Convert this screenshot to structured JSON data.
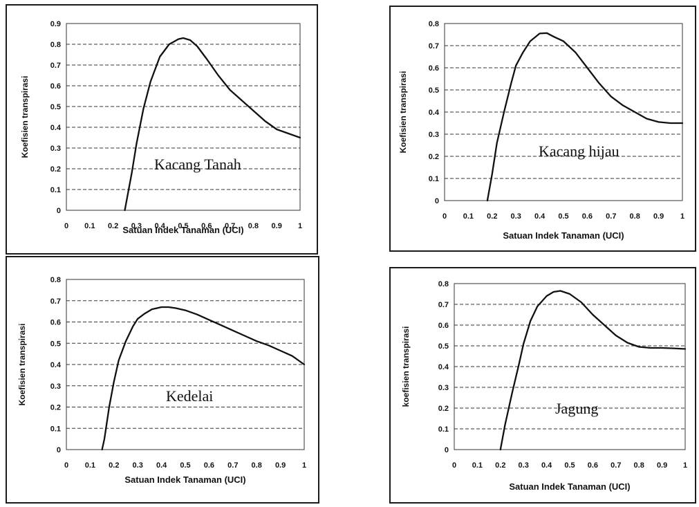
{
  "chart_data": [
    {
      "type": "line",
      "title": "",
      "annotation": "Kacang Tanah",
      "xlabel": "Satuan Indek Tanaman (UCI)",
      "ylabel": "Koefisien transpirasi",
      "xlim": [
        0,
        1
      ],
      "ylim": [
        0,
        0.9
      ],
      "xticks": [
        "0",
        "0.1",
        "0.2",
        "0.3",
        "0.4",
        "0.5",
        "0.6",
        "0.7",
        "0.8",
        "0.9",
        "1"
      ],
      "yticks": [
        "0",
        "0.1",
        "0.2",
        "0.3",
        "0.4",
        "0.5",
        "0.6",
        "0.7",
        "0.8",
        "0.9"
      ],
      "grid": true,
      "series": [
        {
          "x": [
            0.25,
            0.28,
            0.3,
            0.33,
            0.36,
            0.4,
            0.44,
            0.48,
            0.5,
            0.53,
            0.56,
            0.6,
            0.65,
            0.7,
            0.75,
            0.8,
            0.85,
            0.9,
            0.95,
            1.0
          ],
          "y": [
            0.0,
            0.18,
            0.32,
            0.49,
            0.62,
            0.74,
            0.8,
            0.825,
            0.83,
            0.82,
            0.79,
            0.73,
            0.65,
            0.58,
            0.53,
            0.48,
            0.43,
            0.39,
            0.37,
            0.35
          ]
        }
      ]
    },
    {
      "type": "line",
      "title": "",
      "annotation": "Kacang hijau",
      "xlabel": "Satuan Indek Tanaman (UCI)",
      "ylabel": "Koefisien transpirasi",
      "xlim": [
        0,
        1
      ],
      "ylim": [
        0,
        0.8
      ],
      "xticks": [
        "0",
        "0.1",
        "0.2",
        "0.3",
        "0.4",
        "0.5",
        "0.6",
        "0.7",
        "0.8",
        "0.9",
        "1"
      ],
      "yticks": [
        "0",
        "0.1",
        "0.2",
        "0.3",
        "0.4",
        "0.5",
        "0.6",
        "0.7",
        "0.8"
      ],
      "grid": true,
      "series": [
        {
          "x": [
            0.18,
            0.2,
            0.22,
            0.25,
            0.28,
            0.3,
            0.33,
            0.36,
            0.4,
            0.43,
            0.46,
            0.5,
            0.55,
            0.6,
            0.65,
            0.7,
            0.75,
            0.8,
            0.85,
            0.9,
            0.95,
            1.0
          ],
          "y": [
            0.0,
            0.12,
            0.26,
            0.4,
            0.53,
            0.61,
            0.67,
            0.72,
            0.755,
            0.757,
            0.74,
            0.72,
            0.67,
            0.6,
            0.53,
            0.47,
            0.43,
            0.4,
            0.37,
            0.355,
            0.35,
            0.35
          ]
        }
      ]
    },
    {
      "type": "line",
      "title": "",
      "annotation": "Kedelai",
      "xlabel": "Satuan Indek Tanaman (UCI)",
      "ylabel": "Koefisien transpirasi",
      "xlim": [
        0,
        1
      ],
      "ylim": [
        0,
        0.8
      ],
      "xticks": [
        "0",
        "0.1",
        "0.2",
        "0.3",
        "0.4",
        "0.5",
        "0.6",
        "0.7",
        "0.8",
        "0.9",
        "1"
      ],
      "yticks": [
        "0",
        "0.1",
        "0.2",
        "0.3",
        "0.4",
        "0.5",
        "0.6",
        "0.7",
        "0.8"
      ],
      "grid": true,
      "series": [
        {
          "x": [
            0.15,
            0.16,
            0.18,
            0.2,
            0.22,
            0.25,
            0.28,
            0.3,
            0.33,
            0.36,
            0.4,
            0.43,
            0.46,
            0.5,
            0.55,
            0.6,
            0.65,
            0.7,
            0.75,
            0.8,
            0.85,
            0.9,
            0.95,
            1.0
          ],
          "y": [
            0.0,
            0.05,
            0.2,
            0.32,
            0.42,
            0.51,
            0.58,
            0.615,
            0.64,
            0.66,
            0.67,
            0.67,
            0.665,
            0.655,
            0.635,
            0.61,
            0.585,
            0.56,
            0.535,
            0.51,
            0.49,
            0.465,
            0.44,
            0.4
          ]
        }
      ]
    },
    {
      "type": "line",
      "title": "",
      "annotation": "Jagung",
      "xlabel": "Satuan Indek Tanaman (UCI)",
      "ylabel": "koefisien transpirasi",
      "xlim": [
        0,
        1
      ],
      "ylim": [
        0,
        0.8
      ],
      "xticks": [
        "0",
        "0.1",
        "0.2",
        "0.3",
        "0.4",
        "0.5",
        "0.6",
        "0.7",
        "0.8",
        "0.9",
        "1"
      ],
      "yticks": [
        "0",
        "0.1",
        "0.2",
        "0.3",
        "0.4",
        "0.5",
        "0.6",
        "0.7",
        "0.8"
      ],
      "grid": true,
      "series": [
        {
          "x": [
            0.2,
            0.22,
            0.25,
            0.28,
            0.3,
            0.33,
            0.36,
            0.4,
            0.43,
            0.46,
            0.5,
            0.55,
            0.6,
            0.65,
            0.7,
            0.75,
            0.8,
            0.85,
            0.9,
            0.95,
            1.0
          ],
          "y": [
            0.0,
            0.12,
            0.27,
            0.41,
            0.51,
            0.62,
            0.69,
            0.74,
            0.76,
            0.765,
            0.75,
            0.71,
            0.65,
            0.6,
            0.55,
            0.515,
            0.495,
            0.49,
            0.49,
            0.488,
            0.485
          ]
        }
      ]
    }
  ]
}
